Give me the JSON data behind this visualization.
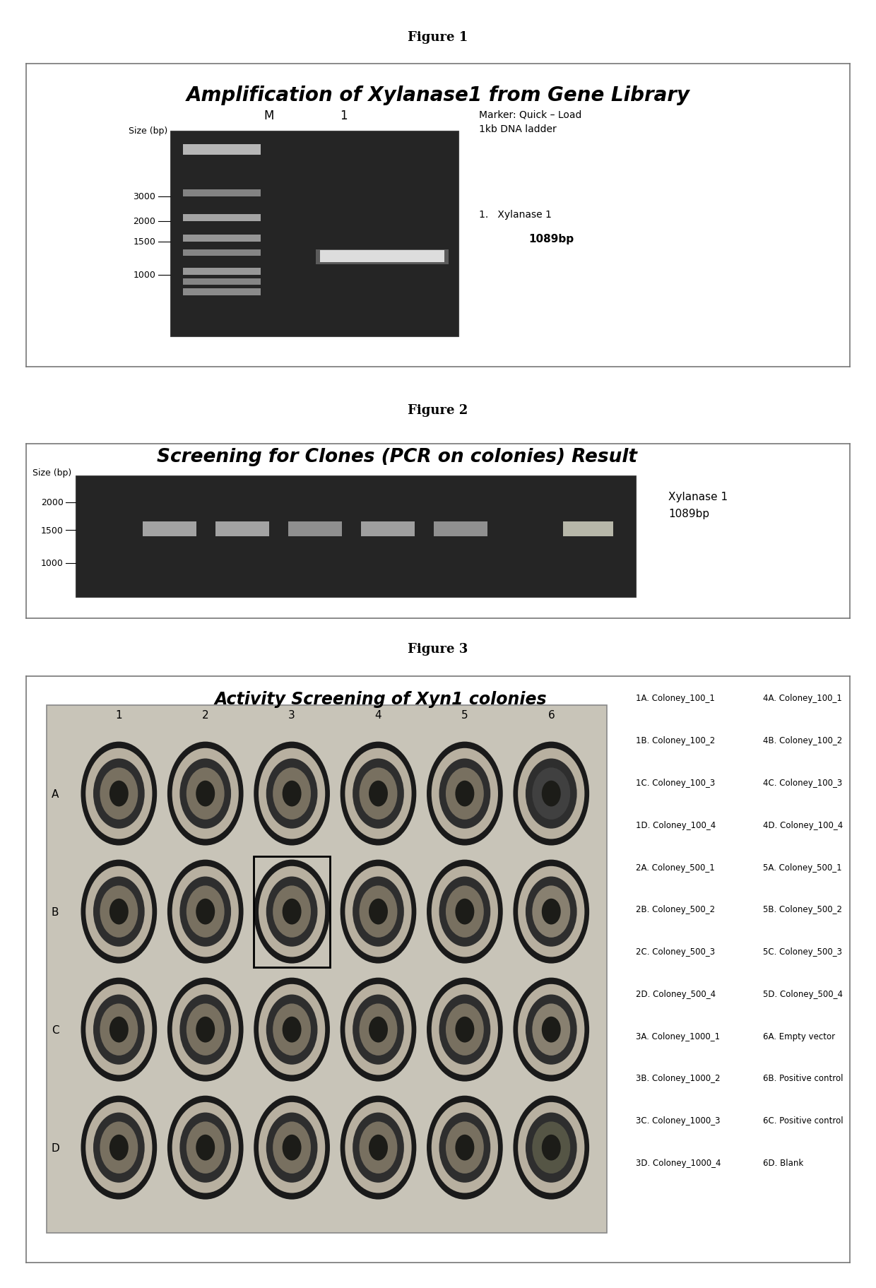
{
  "fig1_title": "Figure 1",
  "fig1_box_title": "Amplification of Xylanase1 from Gene Library",
  "fig1_size_label": "Size (bp)",
  "fig1_size_labels": [
    "3000",
    "2000",
    "1500",
    "1000"
  ],
  "fig1_annotation1": "Marker: Quick – Load\n1kb DNA ladder",
  "fig1_annotation2": "1.   Xylanase 1\n      1089bp",
  "fig2_title": "Figure 2",
  "fig2_box_title": "Screening for Clones (PCR on colonies) Result",
  "fig2_size_labels": [
    "2000",
    "1500",
    "1000"
  ],
  "fig2_size_label": "Size (bp)",
  "fig2_annotation": "Xylanase 1\n1089bp",
  "fig3_title": "Figure 3",
  "fig3_box_title": "Activity Screening of Xyn1 colonies",
  "fig3_col_labels": [
    "1",
    "2",
    "3",
    "4",
    "5",
    "6"
  ],
  "fig3_row_labels": [
    "A",
    "B",
    "C",
    "D"
  ],
  "fig3_legend_left": [
    "1A. Coloney_100_1",
    "1B. Coloney_100_2",
    "1C. Coloney_100_3",
    "1D. Coloney_100_4",
    "2A. Coloney_500_1",
    "2B. Coloney_500_2",
    "2C. Coloney_500_3",
    "2D. Coloney_500_4",
    "3A. Coloney_1000_1",
    "3B. Coloney_1000_2",
    "3C. Coloney_1000_3",
    "3D. Coloney_1000_4"
  ],
  "fig3_legend_right": [
    "4A. Coloney_100_1",
    "4B. Coloney_100_2",
    "4C. Coloney_100_3",
    "4D. Coloney_100_4",
    "5A. Coloney_500_1",
    "5B. Coloney_500_2",
    "5C. Coloney_500_3",
    "5D. Coloney_500_4",
    "6A. Empty vector",
    "6B. Positive control",
    "6C. Positive control",
    "6D. Blank"
  ],
  "bg_color": "#ffffff"
}
